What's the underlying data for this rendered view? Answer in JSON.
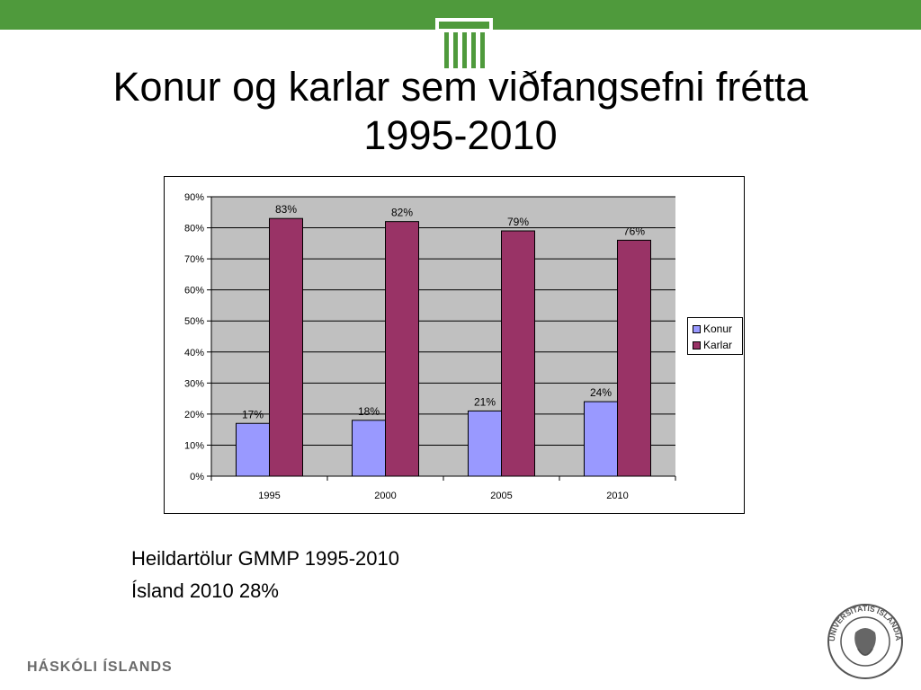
{
  "slide": {
    "title_line1": "Konur og karlar sem viðfangsefni frétta",
    "title_line2": "1995-2010",
    "notes": [
      "Heildartölur GMMP 1995-2010",
      "Ísland 2010 28%"
    ],
    "brand": "HÁSKÓLI ÍSLANDS",
    "seal_text": "UNIVERSITATIS ISLANDIAE SIGILLUM"
  },
  "colors": {
    "top_bar": "#4f9a3c",
    "konur": "#9999ff",
    "karlar": "#993366",
    "plot_bg": "#c0c0c0"
  },
  "chart_data": {
    "type": "bar",
    "categories": [
      "1995",
      "2000",
      "2005",
      "2010"
    ],
    "series": [
      {
        "name": "Konur",
        "values": [
          17,
          18,
          21,
          24
        ],
        "labels": [
          "17%",
          "18%",
          "21%",
          "24%"
        ]
      },
      {
        "name": "Karlar",
        "values": [
          83,
          82,
          79,
          76
        ],
        "labels": [
          "83%",
          "82%",
          "79%",
          "76%"
        ]
      }
    ],
    "yticks": [
      "0%",
      "10%",
      "20%",
      "30%",
      "40%",
      "50%",
      "60%",
      "70%",
      "80%",
      "90%"
    ],
    "ylim": [
      0,
      90
    ],
    "grid": true,
    "legend": "right"
  }
}
